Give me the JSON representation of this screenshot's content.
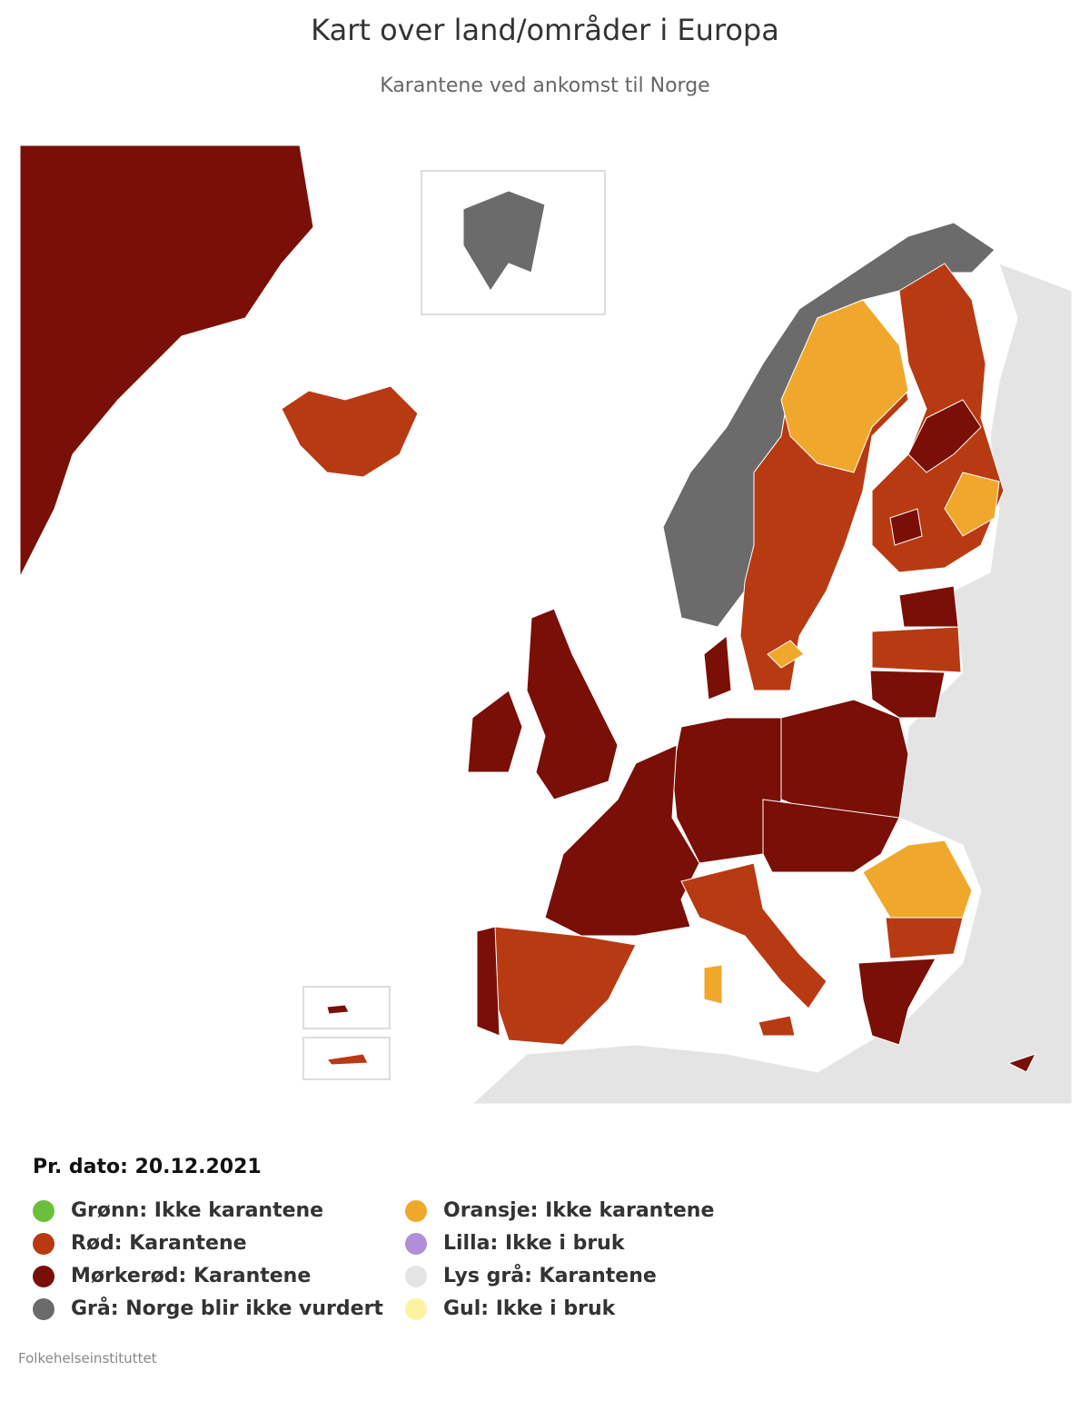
{
  "header": {
    "title": "Kart over land/områder i Europa",
    "subtitle": "Karantene ved ankomst til Norge"
  },
  "legend": {
    "date": "Pr. dato: 20.12.2021",
    "items": [
      {
        "label": "Grønn: Ikke karantene",
        "color": "#6cbf3a"
      },
      {
        "label": "Rød: Karantene",
        "color": "#b83a12"
      },
      {
        "label": "Mørkerød: Karantene",
        "color": "#7a0f08"
      },
      {
        "label": "Grå: Norge blir ikke vurdert",
        "color": "#6b6b6b"
      },
      {
        "label": "Oransje: Ikke karantene",
        "color": "#f0a82c"
      },
      {
        "label": "Lilla: Ikke i bruk",
        "color": "#b08fd8"
      },
      {
        "label": "Lys grå: Karantene",
        "color": "#e4e4e4"
      },
      {
        "label": "Gul: Ikke i bruk",
        "color": "#fbf3a0"
      }
    ]
  },
  "source": "Folkehelseinstituttet"
}
